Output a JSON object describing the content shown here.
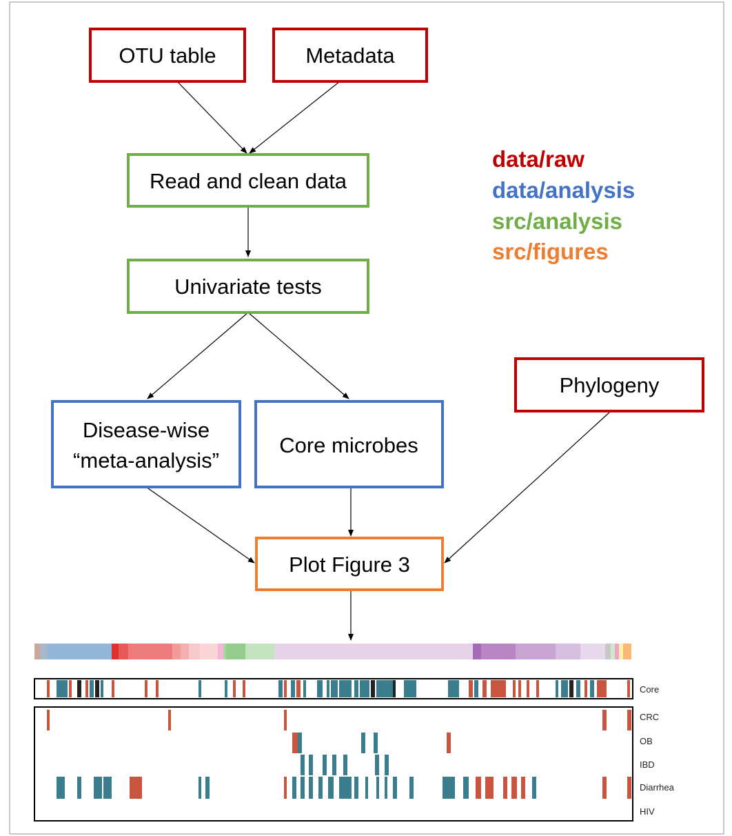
{
  "nodes": {
    "otu_table": {
      "label": "OTU table",
      "category": "data/raw"
    },
    "metadata": {
      "label": "Metadata",
      "category": "data/raw"
    },
    "read_clean": {
      "label": "Read and clean data",
      "category": "src/analysis"
    },
    "univariate": {
      "label": "Univariate tests",
      "category": "src/analysis"
    },
    "disease_wise": {
      "label_line1": "Disease-wise",
      "label_line2": "“meta-analysis”",
      "category": "data/analysis"
    },
    "core_microbes": {
      "label": "Core microbes",
      "category": "data/analysis"
    },
    "phylogeny": {
      "label": "Phylogeny",
      "category": "data/raw"
    },
    "plot_fig3": {
      "label": "Plot Figure 3",
      "category": "src/figures"
    }
  },
  "edges": [
    [
      "otu_table",
      "read_clean"
    ],
    [
      "metadata",
      "read_clean"
    ],
    [
      "read_clean",
      "univariate"
    ],
    [
      "univariate",
      "disease_wise"
    ],
    [
      "univariate",
      "core_microbes"
    ],
    [
      "disease_wise",
      "plot_fig3"
    ],
    [
      "core_microbes",
      "plot_fig3"
    ],
    [
      "phylogeny",
      "plot_fig3"
    ],
    [
      "plot_fig3",
      "figure_thumbnail"
    ]
  ],
  "legend": [
    {
      "label": "data/raw",
      "color": "#c00000"
    },
    {
      "label": "data/analysis",
      "color": "#4472c4"
    },
    {
      "label": "src/analysis",
      "color": "#70ad47"
    },
    {
      "label": "src/figures",
      "color": "#ed7d31"
    }
  ],
  "category_colors": {
    "data/raw": "#c00000",
    "data/analysis": "#4472c4",
    "src/analysis": "#70ad47",
    "src/figures": "#ed7d31"
  },
  "figure_thumbnail": {
    "row_labels": {
      "core": "Core",
      "crc": "CRC",
      "ob": "OB",
      "ibd": "IBD",
      "diarrhea": "Diarrhea",
      "hiv": "HIV"
    },
    "colors": {
      "enriched_in_disease": "#c8553d",
      "depleted_in_disease": "#3a7d8c",
      "mixed": "#222222"
    }
  }
}
